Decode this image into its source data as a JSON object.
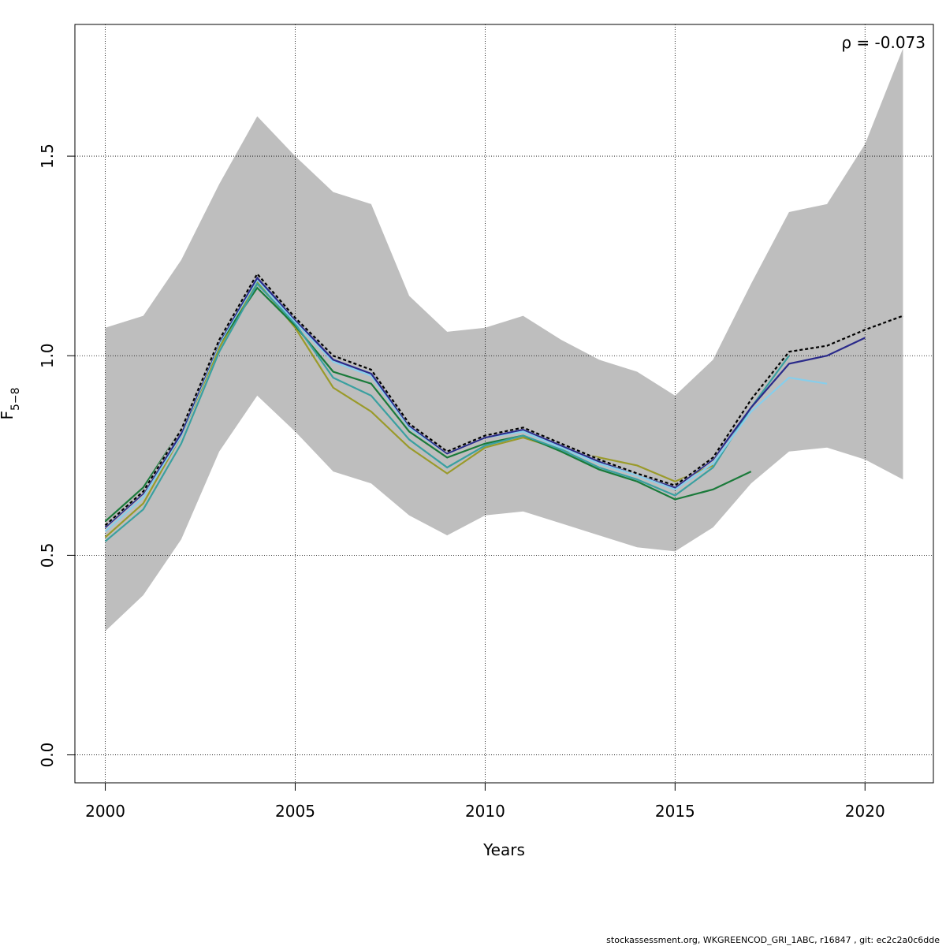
{
  "chart_data": {
    "type": "line",
    "xlabel": "Years",
    "ylabel_main": "F",
    "ylabel_sub": "5−8",
    "annotation": "ρ = -0.073",
    "xlim": [
      1999.2,
      2021.8
    ],
    "ylim": [
      -0.07,
      1.83
    ],
    "x_ticks": [
      2000,
      2005,
      2010,
      2015,
      2020
    ],
    "y_ticks": [
      0.0,
      0.5,
      1.0,
      1.5
    ],
    "y_tick_labels": [
      "0.0",
      "0.5",
      "1.0",
      "1.5"
    ],
    "grid": true,
    "band": {
      "x": [
        2000,
        2001,
        2002,
        2003,
        2004,
        2005,
        2006,
        2007,
        2008,
        2009,
        2010,
        2011,
        2012,
        2013,
        2014,
        2015,
        2016,
        2017,
        2018,
        2019,
        2020,
        2021
      ],
      "upper": [
        1.07,
        1.1,
        1.24,
        1.43,
        1.6,
        1.5,
        1.41,
        1.38,
        1.15,
        1.06,
        1.07,
        1.1,
        1.04,
        0.99,
        0.96,
        0.9,
        0.99,
        1.18,
        1.36,
        1.38,
        1.53,
        1.77
      ],
      "lower": [
        0.31,
        0.4,
        0.54,
        0.76,
        0.9,
        0.81,
        0.71,
        0.68,
        0.6,
        0.55,
        0.6,
        0.61,
        0.58,
        0.55,
        0.52,
        0.51,
        0.57,
        0.68,
        0.76,
        0.77,
        0.74,
        0.69
      ],
      "color": "#bebebe"
    },
    "series": [
      {
        "color": "#9a9a2a",
        "x": [
          2000,
          2001,
          2002,
          2003,
          2004,
          2005,
          2006,
          2007,
          2008,
          2009,
          2010,
          2011,
          2012,
          2013,
          2014,
          2015,
          2016
        ],
        "y": [
          0.545,
          0.63,
          0.8,
          1.02,
          1.185,
          1.07,
          0.92,
          0.86,
          0.77,
          0.705,
          0.77,
          0.795,
          0.765,
          0.745,
          0.725,
          0.685,
          0.725
        ]
      },
      {
        "color": "#1a7a3a",
        "x": [
          2000,
          2001,
          2002,
          2003,
          2004,
          2005,
          2006,
          2007,
          2008,
          2009,
          2010,
          2011,
          2012,
          2013,
          2014,
          2015,
          2016,
          2017
        ],
        "y": [
          0.585,
          0.67,
          0.815,
          1.03,
          1.17,
          1.075,
          0.96,
          0.93,
          0.81,
          0.745,
          0.78,
          0.8,
          0.76,
          0.715,
          0.685,
          0.64,
          0.665,
          0.71
        ]
      },
      {
        "color": "#3aa0a0",
        "x": [
          2000,
          2001,
          2002,
          2003,
          2004,
          2005,
          2006,
          2007,
          2008,
          2009,
          2010,
          2011,
          2012,
          2013,
          2014,
          2015,
          2016,
          2017,
          2018
        ],
        "y": [
          0.535,
          0.615,
          0.78,
          1.01,
          1.18,
          1.08,
          0.945,
          0.9,
          0.79,
          0.72,
          0.775,
          0.8,
          0.765,
          0.72,
          0.69,
          0.65,
          0.72,
          0.87,
          1.0
        ]
      },
      {
        "color": "#87ceeb",
        "x": [
          2000,
          2001,
          2002,
          2003,
          2004,
          2005,
          2006,
          2007,
          2008,
          2009,
          2010,
          2011,
          2012,
          2013,
          2014,
          2015,
          2016,
          2017,
          2018,
          2019
        ],
        "y": [
          0.56,
          0.645,
          0.8,
          1.03,
          1.19,
          1.085,
          0.985,
          0.95,
          0.82,
          0.755,
          0.795,
          0.81,
          0.77,
          0.73,
          0.7,
          0.665,
          0.73,
          0.86,
          0.945,
          0.93
        ]
      },
      {
        "color": "#2a2a8a",
        "x": [
          2000,
          2001,
          2002,
          2003,
          2004,
          2005,
          2006,
          2007,
          2008,
          2009,
          2010,
          2011,
          2012,
          2013,
          2014,
          2015,
          2016,
          2017,
          2018,
          2019,
          2020
        ],
        "y": [
          0.57,
          0.655,
          0.805,
          1.035,
          1.195,
          1.09,
          0.99,
          0.955,
          0.825,
          0.755,
          0.795,
          0.815,
          0.775,
          0.735,
          0.705,
          0.67,
          0.74,
          0.87,
          0.98,
          1.0,
          1.045
        ]
      },
      {
        "color": "#000000",
        "dashed": true,
        "x": [
          2000,
          2001,
          2002,
          2003,
          2004,
          2005,
          2006,
          2007,
          2008,
          2009,
          2010,
          2011,
          2012,
          2013,
          2014,
          2015,
          2016,
          2017,
          2018,
          2019,
          2020,
          2021
        ],
        "y": [
          0.575,
          0.66,
          0.815,
          1.04,
          1.205,
          1.095,
          1.0,
          0.965,
          0.83,
          0.76,
          0.8,
          0.82,
          0.78,
          0.74,
          0.705,
          0.675,
          0.745,
          0.89,
          1.01,
          1.025,
          1.065,
          1.1
        ]
      }
    ]
  },
  "footer": "stockassessment.org, WKGREENCOD_GRI_1ABC, r16847 , git: ec2c2a0c6dde"
}
